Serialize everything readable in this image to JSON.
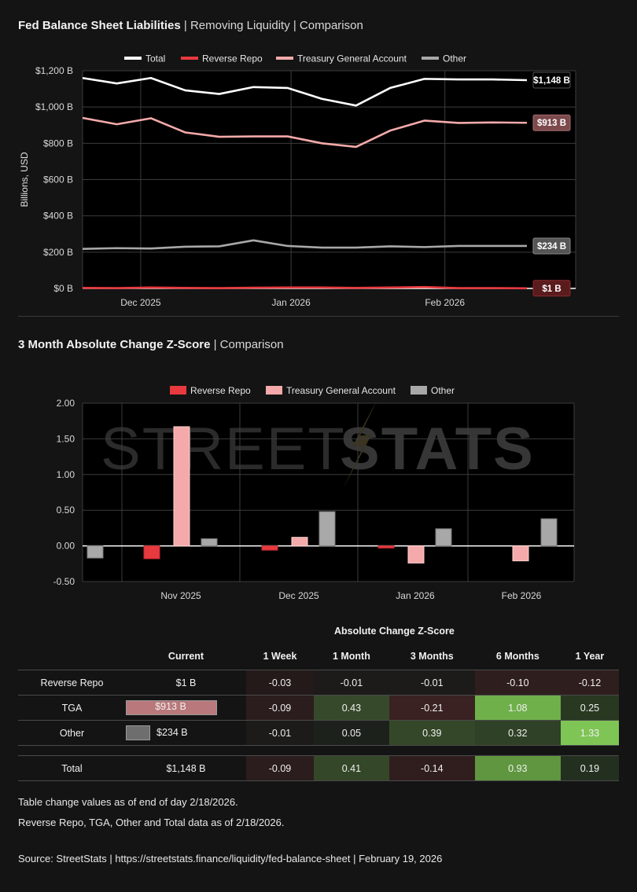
{
  "chart1": {
    "title_main": "Fed Balance Sheet Liabilities",
    "title_sub": " | Removing Liquidity | Comparison",
    "ylabel": "Billions, USD",
    "legend": [
      "Total",
      "Reverse Repo",
      "Treasury General Account",
      "Other"
    ]
  },
  "chart2": {
    "title_main": "3 Month Absolute Change Z-Score",
    "title_sub": " | Comparison",
    "legend": [
      "Reverse Repo",
      "Treasury General Account",
      "Other"
    ],
    "watermark_a": "STREET",
    "watermark_b": "STATS"
  },
  "chart_data": [
    {
      "type": "line",
      "title": "Fed Balance Sheet Liabilities | Removing Liquidity | Comparison",
      "ylabel": "Billions, USD",
      "ylim": [
        0,
        1200
      ],
      "yticks": [
        "$0 B",
        "$200 B",
        "$400 B",
        "$600 B",
        "$800 B",
        "$1,000 B",
        "$1,200 B"
      ],
      "xticks": [
        "Dec 2025",
        "Jan 2026",
        "Feb 2026"
      ],
      "x": [
        "2025-11-19",
        "2025-11-26",
        "2025-12-03",
        "2025-12-10",
        "2025-12-17",
        "2025-12-24",
        "2025-12-31",
        "2026-01-07",
        "2026-01-14",
        "2026-01-21",
        "2026-01-28",
        "2026-02-04",
        "2026-02-11",
        "2026-02-18"
      ],
      "series": [
        {
          "name": "Total",
          "color": "#ffffff",
          "values": [
            1160,
            1130,
            1160,
            1092,
            1072,
            1110,
            1105,
            1045,
            1008,
            1105,
            1155,
            1152,
            1152,
            1148
          ],
          "label": "$1,148 B"
        },
        {
          "name": "Reverse Repo",
          "color": "#e8393f",
          "values": [
            3,
            2,
            5,
            3,
            2,
            4,
            5,
            5,
            3,
            5,
            8,
            2,
            2,
            1
          ],
          "label": "$1 B"
        },
        {
          "name": "Treasury General Account",
          "color": "#f4aaaa",
          "values": [
            940,
            905,
            938,
            860,
            836,
            838,
            838,
            800,
            780,
            870,
            925,
            912,
            915,
            913
          ],
          "label": "$913 B"
        },
        {
          "name": "Other",
          "color": "#a8a8a8",
          "values": [
            218,
            222,
            220,
            230,
            232,
            265,
            234,
            225,
            225,
            232,
            228,
            234,
            234,
            234
          ],
          "label": "$234 B"
        }
      ]
    },
    {
      "type": "bar",
      "title": "3 Month Absolute Change Z-Score | Comparison",
      "ylim": [
        -0.5,
        2.0
      ],
      "yticks": [
        "-0.50",
        "0.00",
        "0.50",
        "1.00",
        "1.50",
        "2.00"
      ],
      "categories": [
        "",
        "Nov 2025",
        "Dec 2025",
        "Jan 2026",
        "Feb 2026"
      ],
      "series": [
        {
          "name": "Reverse Repo",
          "color": "#e8393f",
          "values": [
            null,
            -0.18,
            -0.06,
            -0.03,
            null
          ]
        },
        {
          "name": "Treasury General Account",
          "color": "#f4aaaa",
          "values": [
            null,
            1.67,
            0.12,
            -0.24,
            -0.21
          ]
        },
        {
          "name": "Other",
          "color": "#a8a8a8",
          "values": [
            -0.17,
            0.1,
            0.48,
            0.24,
            0.38
          ]
        }
      ]
    }
  ],
  "table": {
    "group_header": "Absolute Change Z-Score",
    "headers": [
      "",
      "Current",
      "1 Week",
      "1 Month",
      "3 Months",
      "6 Months",
      "1 Year"
    ],
    "rows": [
      {
        "name": "Reverse Repo",
        "current": "$1 B",
        "bar": 0.0,
        "bar_color": "#e8393f",
        "cells": [
          "-0.03",
          "-0.01",
          "-0.01",
          "-0.10",
          "-0.12"
        ],
        "colors": [
          "#231a19",
          "#1c1b1a",
          "#1c1b1a",
          "#2f1e1e",
          "#2f1e1e"
        ]
      },
      {
        "name": "TGA",
        "current": "$913 B",
        "bar": 1.0,
        "bar_color": "#b9787b",
        "cells": [
          "-0.09",
          "0.43",
          "-0.21",
          "1.08",
          "0.25"
        ],
        "colors": [
          "#2b1d1d",
          "#36492a",
          "#3a2222",
          "#6fb04b",
          "#283821"
        ]
      },
      {
        "name": "Other",
        "current": "$234 B",
        "bar": 0.256,
        "bar_color": "#6e6e6e",
        "cells": [
          "-0.01",
          "0.05",
          "0.39",
          "0.32",
          "1.33"
        ],
        "colors": [
          "#1c1b1a",
          "#1d211b",
          "#344729",
          "#2f4126",
          "#7fc556"
        ]
      }
    ],
    "total": {
      "name": "Total",
      "current": "$1,148 B",
      "cells": [
        "-0.09",
        "0.41",
        "-0.14",
        "0.93",
        "0.19"
      ],
      "colors": [
        "#2b1d1d",
        "#344729",
        "#301e1e",
        "#5f963f",
        "#233020"
      ]
    }
  },
  "notes": {
    "line1": "Table change values as of end of day 2/18/2026.",
    "line2": "Reverse Repo, TGA, Other and Total data as of 2/18/2026.",
    "source": "Source:  StreetStats  |  https://streetstats.finance/liquidity/fed-balance-sheet  |  February 19, 2026"
  }
}
